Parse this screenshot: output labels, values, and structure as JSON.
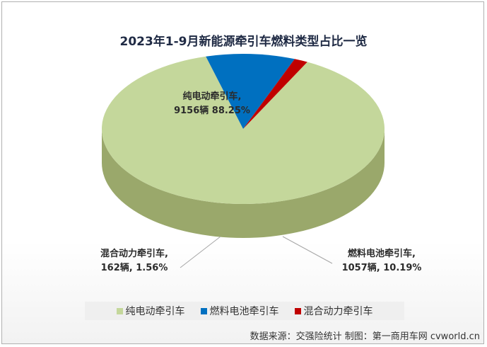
{
  "chart_data": {
    "type": "pie",
    "title": "2023年1-9月新能源牵引车燃料类型占比一览",
    "slices": [
      {
        "name": "纯电动牵引车",
        "value": 9156,
        "percent": 88.25,
        "color": "#c4d79b",
        "side": "#9aa86b",
        "label_lines": [
          "纯电动牵引车,",
          "9156辆 88.25%"
        ]
      },
      {
        "name": "燃料电池牵引车",
        "value": 1057,
        "percent": 10.19,
        "color": "#0070c0",
        "side": "#0c2e66",
        "label_lines": [
          "燃料电池牵引车,",
          "1057辆, 10.19%"
        ]
      },
      {
        "name": "混合动力牵引车",
        "value": 162,
        "percent": 1.56,
        "color": "#c00000",
        "side": "#6b0000",
        "label_lines": [
          "混合动力牵引车,",
          "162辆, 1.56%"
        ]
      }
    ],
    "legend_position": "bottom"
  },
  "source_text": "数据来源：交强险统计  制图：第一商用车网 cvworld.cn"
}
